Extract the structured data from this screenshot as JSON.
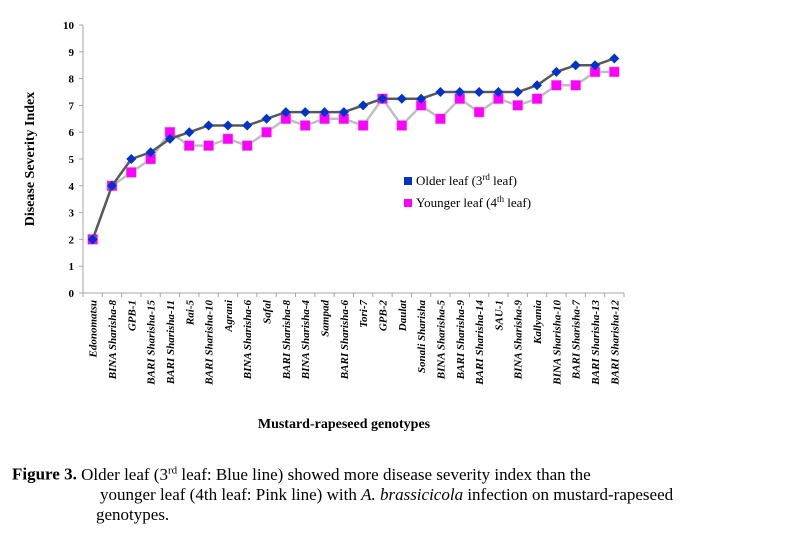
{
  "chart_data": {
    "type": "line",
    "title": "",
    "xlabel": "Mustard-rapeseed genotypes",
    "ylabel": "Disease Severity Index",
    "ylim": [
      0,
      10
    ],
    "yticks": [
      "0",
      "1",
      "2",
      "3",
      "4",
      "5",
      "6",
      "7",
      "8",
      "9",
      "10"
    ],
    "grid": false,
    "legend_position": "center-right",
    "categories": [
      "Edonomatsu",
      "BINA Sharisha-8",
      "GPB-1",
      "BARI Sharisha-15",
      "BARI Sharisha-11",
      "Rai-5",
      "BARI Sharisha-10",
      "Agrani",
      "BINA Sharisha-6",
      "Safal",
      "BARI Sharisha-8",
      "BINA Sharisha-4",
      "Sampad",
      "BARI Sharisha-6",
      "Tori-7",
      "GPB-2",
      "Daulat",
      "Sonali Sharisha",
      "BINA Sharisha-5",
      "BARI Sharisha-9",
      "BARI Sharisha-14",
      "SAU-1",
      "BINA Sharisha-9",
      "Kallyania",
      "BINA Sharisha-10",
      "BARI Sharisha-7",
      "BARI Sharisha-13",
      "BARI Sharisha-12"
    ],
    "series": [
      {
        "name": "Older leaf (3rd leaf)",
        "legend_main": "Older leaf (3",
        "legend_sup": "rd",
        "legend_tail": " leaf)",
        "marker": "diamond",
        "marker_color": "#0033cc",
        "line_color": "#595959",
        "values": [
          2,
          4,
          5,
          5.25,
          5.75,
          6,
          6.25,
          6.25,
          6.25,
          6.5,
          6.75,
          6.75,
          6.75,
          6.75,
          7,
          7.25,
          7.25,
          7.25,
          7.5,
          7.5,
          7.5,
          7.5,
          7.5,
          7.75,
          8.25,
          8.5,
          8.5,
          8.75
        ]
      },
      {
        "name": "Younger leaf (4th leaf)",
        "legend_main": "Younger leaf (4",
        "legend_sup": "th",
        "legend_tail": " leaf)",
        "marker": "square",
        "marker_color": "#ff00ff",
        "line_color": "#bfbfbf",
        "values": [
          2,
          4,
          4.5,
          5,
          6,
          5.5,
          5.5,
          5.75,
          5.5,
          6,
          6.5,
          6.25,
          6.5,
          6.5,
          6.25,
          7.25,
          6.25,
          7,
          6.5,
          7.25,
          6.75,
          7.25,
          7,
          7.25,
          7.75,
          7.75,
          8.25,
          8.25
        ]
      }
    ]
  },
  "caption": {
    "label": "Figure 3.",
    "line1": " Older leaf (3",
    "line1_sup": "rd",
    "line1_tail": " leaf: Blue line) showed more disease severity index than the",
    "line2_pre": "younger leaf (4th leaf: Pink line) with ",
    "line2_italic": "A. brassicicola",
    "line2_post": " infection on mustard-rapeseed",
    "line3": "genotypes."
  }
}
